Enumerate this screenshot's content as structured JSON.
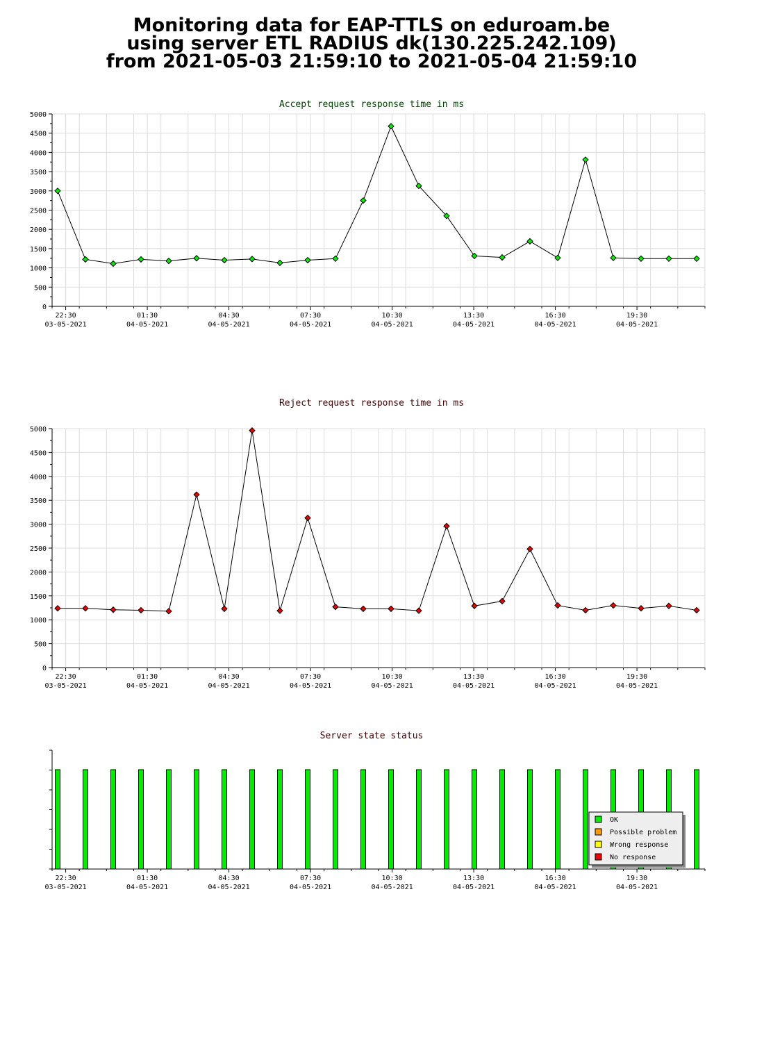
{
  "title": {
    "line1": "Monitoring data for EAP-TTLS on eduroam.be",
    "line2": "using server ETL RADIUS dk(130.225.242.109)",
    "line3": "from 2021-05-03 21:59:10 to 2021-05-04 21:59:10"
  },
  "colors": {
    "accept": "#00ee00",
    "reject": "#ee0000",
    "line": "#000000",
    "title_accept": "#004400",
    "title_reject": "#440000"
  },
  "x_ticks": [
    {
      "time": "22:30",
      "date": "03-05-2021"
    },
    {
      "time": "01:30",
      "date": "04-05-2021"
    },
    {
      "time": "04:30",
      "date": "04-05-2021"
    },
    {
      "time": "07:30",
      "date": "04-05-2021"
    },
    {
      "time": "10:30",
      "date": "04-05-2021"
    },
    {
      "time": "13:30",
      "date": "04-05-2021"
    },
    {
      "time": "16:30",
      "date": "04-05-2021"
    },
    {
      "time": "19:30",
      "date": "04-05-2021"
    }
  ],
  "chart_data": [
    {
      "type": "line",
      "title": "Accept request response time in ms",
      "xlabel": "",
      "ylabel": "",
      "ylim": [
        0,
        5000
      ],
      "yticks": [
        0,
        500,
        1000,
        1500,
        2000,
        2500,
        3000,
        3500,
        4000,
        4500,
        5000
      ],
      "grid": true,
      "x": [
        "22:00",
        "23:00",
        "00:00",
        "01:00",
        "02:00",
        "03:00",
        "04:00",
        "05:00",
        "06:00",
        "07:00",
        "08:00",
        "09:00",
        "10:00",
        "11:00",
        "12:00",
        "13:00",
        "14:00",
        "15:00",
        "16:00",
        "17:00",
        "18:00",
        "19:00",
        "20:00",
        "21:00"
      ],
      "values": [
        3000,
        1220,
        1110,
        1220,
        1180,
        1250,
        1200,
        1230,
        1130,
        1200,
        1240,
        2750,
        4680,
        3130,
        2350,
        1310,
        1270,
        1690,
        1260,
        3810,
        1260,
        1240,
        1240,
        1240
      ]
    },
    {
      "type": "line",
      "title": "Reject request response time in ms",
      "xlabel": "",
      "ylabel": "",
      "ylim": [
        0,
        5000
      ],
      "yticks": [
        0,
        500,
        1000,
        1500,
        2000,
        2500,
        3000,
        3500,
        4000,
        4500,
        5000
      ],
      "grid": true,
      "x": [
        "22:00",
        "23:00",
        "00:00",
        "01:00",
        "02:00",
        "03:00",
        "04:00",
        "05:00",
        "06:00",
        "07:00",
        "08:00",
        "09:00",
        "10:00",
        "11:00",
        "12:00",
        "13:00",
        "14:00",
        "15:00",
        "16:00",
        "17:00",
        "18:00",
        "19:00",
        "20:00",
        "21:00"
      ],
      "values": [
        1240,
        1240,
        1210,
        1200,
        1180,
        3620,
        1230,
        4960,
        1190,
        3130,
        1270,
        1230,
        1230,
        1190,
        2960,
        1290,
        1390,
        2480,
        1300,
        1200,
        1300,
        1240,
        1290,
        1200
      ]
    },
    {
      "type": "bar",
      "title": "Server state status",
      "xlabel": "",
      "ylabel": "",
      "grid": false,
      "x": [
        "22:00",
        "23:00",
        "00:00",
        "01:00",
        "02:00",
        "03:00",
        "04:00",
        "05:00",
        "06:00",
        "07:00",
        "08:00",
        "09:00",
        "10:00",
        "11:00",
        "12:00",
        "13:00",
        "14:00",
        "15:00",
        "16:00",
        "17:00",
        "18:00",
        "19:00",
        "20:00",
        "21:00"
      ],
      "states": [
        "OK",
        "OK",
        "OK",
        "OK",
        "OK",
        "OK",
        "OK",
        "OK",
        "OK",
        "OK",
        "OK",
        "OK",
        "OK",
        "OK",
        "OK",
        "OK",
        "OK",
        "OK",
        "OK",
        "OK",
        "OK",
        "OK",
        "OK",
        "OK"
      ],
      "legend": [
        {
          "label": "OK",
          "color": "#00ee00"
        },
        {
          "label": "Possible problem",
          "color": "#ff9900"
        },
        {
          "label": "Wrong response",
          "color": "#ffff00"
        },
        {
          "label": "No response",
          "color": "#ee0000"
        }
      ],
      "legend_position": "bottom-right"
    }
  ]
}
